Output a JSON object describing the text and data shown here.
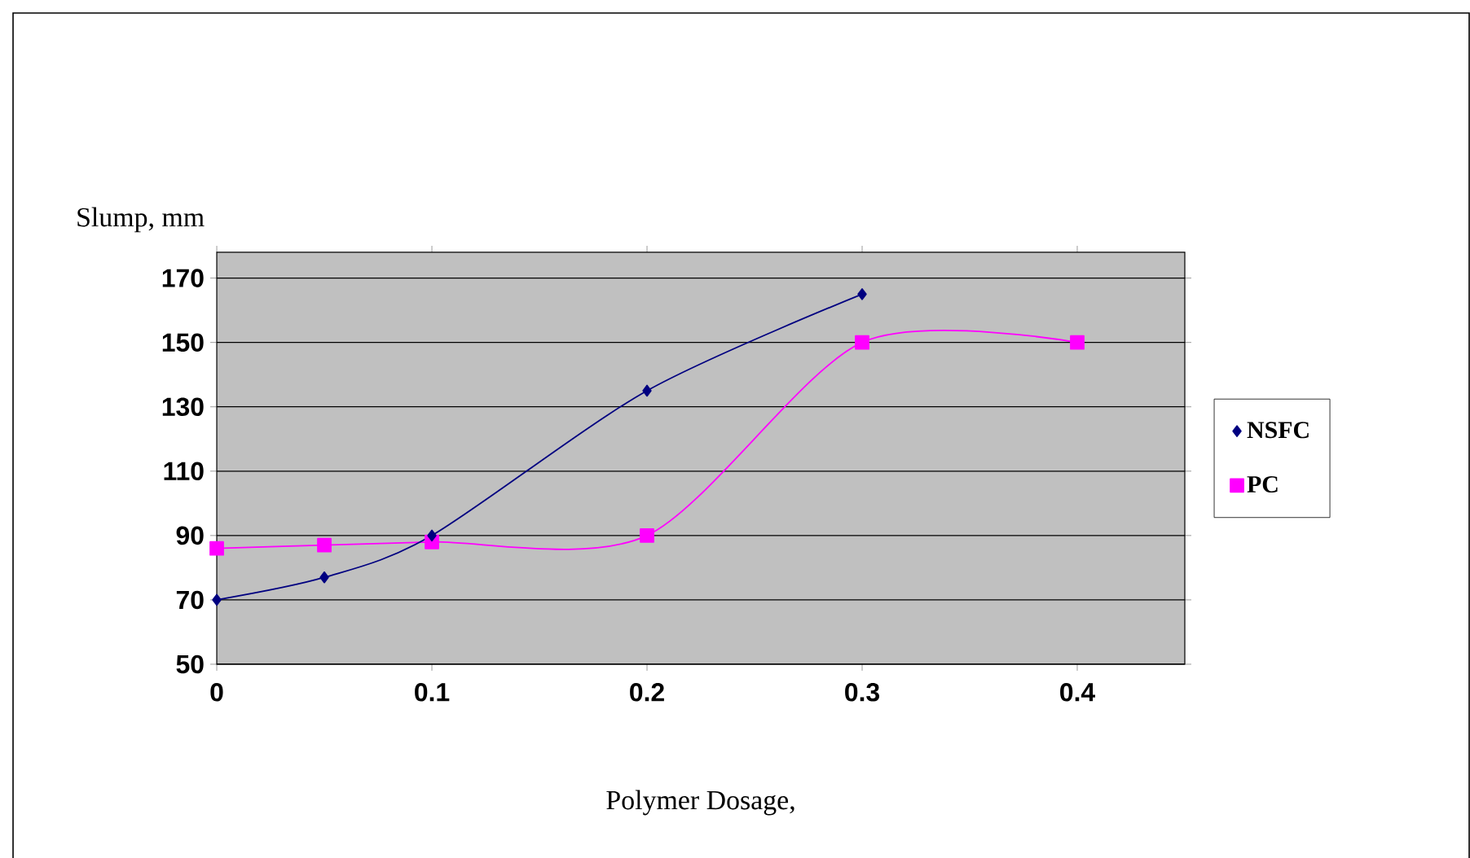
{
  "chart_data": {
    "type": "line",
    "xlabel": "Polymer Dosage,",
    "ylabel": "Slump, mm",
    "xlim": [
      0,
      0.45
    ],
    "ylim": [
      50,
      178
    ],
    "xticks": [
      0,
      0.1,
      0.2,
      0.3,
      0.4
    ],
    "yticks": [
      50,
      70,
      90,
      110,
      130,
      150,
      170
    ],
    "grid": "y",
    "legend": "right",
    "series": [
      {
        "name": "NSFC",
        "color": "#000080",
        "marker": "diamond",
        "x": [
          0,
          0.05,
          0.1,
          0.2,
          0.3
        ],
        "values": [
          70,
          77,
          90,
          135,
          165
        ]
      },
      {
        "name": "PC",
        "color": "#ff00ff",
        "marker": "square",
        "x": [
          0,
          0.05,
          0.1,
          0.2,
          0.3,
          0.4
        ],
        "values": [
          86,
          87,
          88,
          90,
          150,
          150
        ]
      }
    ]
  }
}
